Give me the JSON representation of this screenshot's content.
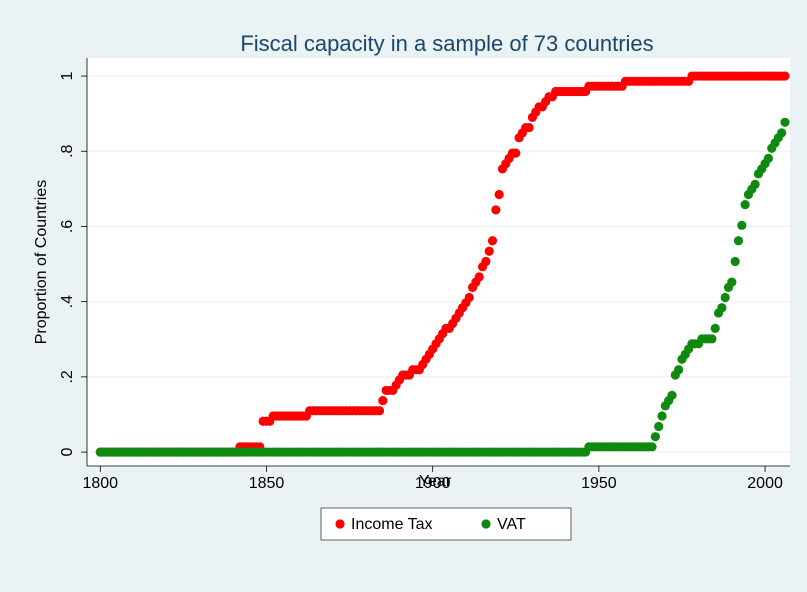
{
  "chart_data": {
    "type": "scatter",
    "title": "Fiscal capacity in a sample of 73 countries",
    "x_label": "Year",
    "y_label": "Proportion of Countries",
    "xlim": [
      1796,
      2007.5
    ],
    "ylim": [
      -0.037,
      1.048
    ],
    "xticks": [
      1800,
      1850,
      1900,
      1950,
      2000
    ],
    "yticks": [
      0,
      {
        "value": 0.2,
        "label": ".2"
      },
      {
        "value": 0.4,
        "label": ".4"
      },
      {
        "value": 0.6,
        "label": ".6"
      },
      {
        "value": 0.8,
        "label": ".8"
      },
      1
    ],
    "grid": true,
    "legend": "bottom",
    "x": [
      1800,
      1801,
      1802,
      1803,
      1804,
      1805,
      1806,
      1807,
      1808,
      1809,
      1810,
      1811,
      1812,
      1813,
      1814,
      1815,
      1816,
      1817,
      1818,
      1819,
      1820,
      1821,
      1822,
      1823,
      1824,
      1825,
      1826,
      1827,
      1828,
      1829,
      1830,
      1831,
      1832,
      1833,
      1834,
      1835,
      1836,
      1837,
      1838,
      1839,
      1840,
      1841,
      1842,
      1843,
      1844,
      1845,
      1846,
      1847,
      1848,
      1849,
      1850,
      1851,
      1852,
      1853,
      1854,
      1855,
      1856,
      1857,
      1858,
      1859,
      1860,
      1861,
      1862,
      1863,
      1864,
      1865,
      1866,
      1867,
      1868,
      1869,
      1870,
      1871,
      1872,
      1873,
      1874,
      1875,
      1876,
      1877,
      1878,
      1879,
      1880,
      1881,
      1882,
      1883,
      1884,
      1885,
      1886,
      1887,
      1888,
      1889,
      1890,
      1891,
      1892,
      1893,
      1894,
      1895,
      1896,
      1897,
      1898,
      1899,
      1900,
      1901,
      1902,
      1903,
      1904,
      1905,
      1906,
      1907,
      1908,
      1909,
      1910,
      1911,
      1912,
      1913,
      1914,
      1915,
      1916,
      1917,
      1918,
      1919,
      1920,
      1921,
      1922,
      1923,
      1924,
      1925,
      1926,
      1927,
      1928,
      1929,
      1930,
      1931,
      1932,
      1933,
      1934,
      1935,
      1936,
      1937,
      1938,
      1939,
      1940,
      1941,
      1942,
      1943,
      1944,
      1945,
      1946,
      1947,
      1948,
      1949,
      1950,
      1951,
      1952,
      1953,
      1954,
      1955,
      1956,
      1957,
      1958,
      1959,
      1960,
      1961,
      1962,
      1963,
      1964,
      1965,
      1966,
      1967,
      1968,
      1969,
      1970,
      1971,
      1972,
      1973,
      1974,
      1975,
      1976,
      1977,
      1978,
      1979,
      1980,
      1981,
      1982,
      1983,
      1984,
      1985,
      1986,
      1987,
      1988,
      1989,
      1990,
      1991,
      1992,
      1993,
      1994,
      1995,
      1996,
      1997,
      1998,
      1999,
      2000,
      2001,
      2002,
      2003,
      2004,
      2005,
      2006
    ],
    "series": [
      {
        "name": "Income Tax",
        "color": "#ff0000",
        "values": [
          0,
          0,
          0,
          0,
          0,
          0,
          0,
          0,
          0,
          0,
          0,
          0,
          0,
          0,
          0,
          0,
          0,
          0,
          0,
          0,
          0,
          0,
          0,
          0,
          0,
          0,
          0,
          0,
          0,
          0,
          0,
          0,
          0,
          0,
          0,
          0,
          0,
          0,
          0,
          0,
          0,
          0,
          0.014,
          0.014,
          0.014,
          0.014,
          0.014,
          0.014,
          0.014,
          0.082,
          0.082,
          0.082,
          0.096,
          0.096,
          0.096,
          0.096,
          0.096,
          0.096,
          0.096,
          0.096,
          0.096,
          0.096,
          0.096,
          0.11,
          0.11,
          0.11,
          0.11,
          0.11,
          0.11,
          0.11,
          0.11,
          0.11,
          0.11,
          0.11,
          0.11,
          0.11,
          0.11,
          0.11,
          0.11,
          0.11,
          0.11,
          0.11,
          0.11,
          0.11,
          0.11,
          0.137,
          0.164,
          0.164,
          0.164,
          0.178,
          0.192,
          0.205,
          0.205,
          0.205,
          0.219,
          0.219,
          0.219,
          0.233,
          0.247,
          0.26,
          0.274,
          0.288,
          0.301,
          0.315,
          0.329,
          0.329,
          0.342,
          0.356,
          0.37,
          0.384,
          0.397,
          0.411,
          0.438,
          0.452,
          0.466,
          0.493,
          0.507,
          0.534,
          0.562,
          0.644,
          0.685,
          0.753,
          0.767,
          0.781,
          0.795,
          0.795,
          0.836,
          0.849,
          0.863,
          0.863,
          0.89,
          0.904,
          0.918,
          0.918,
          0.932,
          0.945,
          0.945,
          0.959,
          0.959,
          0.959,
          0.959,
          0.959,
          0.959,
          0.959,
          0.959,
          0.959,
          0.959,
          0.973,
          0.973,
          0.973,
          0.973,
          0.973,
          0.973,
          0.973,
          0.973,
          0.973,
          0.973,
          0.973,
          0.986,
          0.986,
          0.986,
          0.986,
          0.986,
          0.986,
          0.986,
          0.986,
          0.986,
          0.986,
          0.986,
          0.986,
          0.986,
          0.986,
          0.986,
          0.986,
          0.986,
          0.986,
          0.986,
          0.986,
          1,
          1,
          1,
          1,
          1,
          1,
          1,
          1,
          1,
          1,
          1,
          1,
          1,
          1,
          1,
          1,
          1,
          1,
          1,
          1,
          1,
          1,
          1,
          1,
          1,
          1,
          1,
          1,
          1
        ]
      },
      {
        "name": "VAT",
        "color": "#0f8a0f",
        "values": [
          0,
          0,
          0,
          0,
          0,
          0,
          0,
          0,
          0,
          0,
          0,
          0,
          0,
          0,
          0,
          0,
          0,
          0,
          0,
          0,
          0,
          0,
          0,
          0,
          0,
          0,
          0,
          0,
          0,
          0,
          0,
          0,
          0,
          0,
          0,
          0,
          0,
          0,
          0,
          0,
          0,
          0,
          0,
          0,
          0,
          0,
          0,
          0,
          0,
          0,
          0,
          0,
          0,
          0,
          0,
          0,
          0,
          0,
          0,
          0,
          0,
          0,
          0,
          0,
          0,
          0,
          0,
          0,
          0,
          0,
          0,
          0,
          0,
          0,
          0,
          0,
          0,
          0,
          0,
          0,
          0,
          0,
          0,
          0,
          0,
          0,
          0,
          0,
          0,
          0,
          0,
          0,
          0,
          0,
          0,
          0,
          0,
          0,
          0,
          0,
          0,
          0,
          0,
          0,
          0,
          0,
          0,
          0,
          0,
          0,
          0,
          0,
          0,
          0,
          0,
          0,
          0,
          0,
          0,
          0,
          0,
          0,
          0,
          0,
          0,
          0,
          0,
          0,
          0,
          0,
          0,
          0,
          0,
          0,
          0,
          0,
          0,
          0,
          0,
          0,
          0,
          0,
          0,
          0,
          0,
          0,
          0,
          0.014,
          0.014,
          0.014,
          0.014,
          0.014,
          0.014,
          0.014,
          0.014,
          0.014,
          0.014,
          0.014,
          0.014,
          0.014,
          0.014,
          0.014,
          0.014,
          0.014,
          0.014,
          0.014,
          0.014,
          0.041,
          0.068,
          0.096,
          0.123,
          0.137,
          0.151,
          0.205,
          0.219,
          0.247,
          0.26,
          0.274,
          0.288,
          0.288,
          0.288,
          0.301,
          0.301,
          0.301,
          0.301,
          0.329,
          0.37,
          0.384,
          0.411,
          0.438,
          0.452,
          0.507,
          0.562,
          0.603,
          0.658,
          0.685,
          0.699,
          0.712,
          0.74,
          0.753,
          0.767,
          0.781,
          0.808,
          0.822,
          0.836,
          0.849,
          0.877
        ]
      }
    ]
  }
}
